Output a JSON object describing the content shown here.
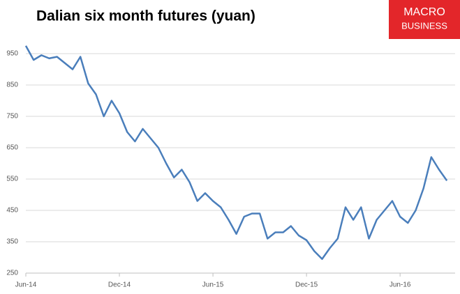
{
  "chart_data": {
    "type": "line",
    "title": "Dalian six month futures (yuan)",
    "logo": {
      "line1": "MACRO",
      "line2": "BUSINESS"
    },
    "categories": [
      "Jun-14",
      null,
      null,
      null,
      null,
      null,
      null,
      null,
      null,
      null,
      null,
      null,
      "Dec-14",
      null,
      null,
      null,
      null,
      null,
      null,
      null,
      null,
      null,
      null,
      null,
      "Jun-15",
      null,
      null,
      null,
      null,
      null,
      null,
      null,
      null,
      null,
      null,
      null,
      "Dec-15",
      null,
      null,
      null,
      null,
      null,
      null,
      null,
      null,
      null,
      null,
      null,
      "Jun-16",
      null,
      null,
      null,
      null,
      null,
      null
    ],
    "series": [
      {
        "color": "#4a7ebb",
        "values": [
          975,
          930,
          945,
          935,
          940,
          920,
          900,
          940,
          855,
          820,
          750,
          800,
          760,
          700,
          670,
          710,
          680,
          650,
          600,
          555,
          580,
          540,
          480,
          505,
          480,
          460,
          420,
          375,
          430,
          440,
          440,
          360,
          380,
          380,
          400,
          370,
          355,
          320,
          295,
          330,
          360,
          460,
          420,
          460,
          360,
          420,
          450,
          480,
          430,
          410,
          450,
          520,
          620,
          580,
          545
        ]
      }
    ],
    "ylim": [
      250,
      1000
    ],
    "yticks": [
      250,
      350,
      450,
      550,
      650,
      750,
      850,
      950
    ],
    "grid": true
  }
}
